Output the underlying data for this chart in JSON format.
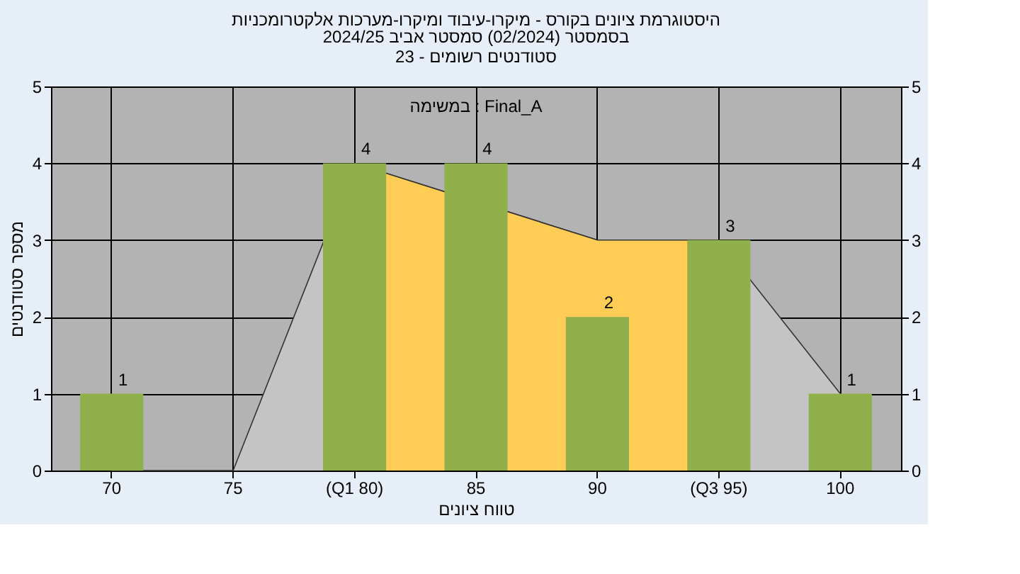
{
  "chart_data": {
    "type": "bar",
    "title": "היסטוגרמת ציונים בקורס - מיקרו-עיבוד ומיקרו-מערכות אלקטרומכניות",
    "subtitle": "בסמסטר  (02/2024)  סמסטר אביב 2024/25\nסטודנטים רשומים - 23",
    "xlabel": "טווח ציונים",
    "ylabel": "מספר סטודנטים",
    "annotations": [
      "במשימה : Final_A"
    ],
    "categories": [
      "70",
      "75",
      "(Q1 80)",
      "85",
      "90",
      "(Q3 95)",
      "100"
    ],
    "series": [
      {
        "type": "area",
        "color": "#c4c4c4",
        "values": [
          0,
          0,
          4,
          null,
          3,
          3,
          1
        ]
      },
      {
        "type": "area",
        "color": "#ffcc55",
        "values": [
          null,
          null,
          4,
          null,
          3,
          3,
          null
        ]
      },
      {
        "color": "#8fb04a",
        "values": [
          1,
          0,
          4,
          4,
          2,
          3,
          1
        ],
        "value_labels": [
          "1",
          null,
          "4",
          "4",
          "2",
          "3",
          "1"
        ]
      }
    ],
    "ylim": [
      0,
      5
    ],
    "yticks": [
      0,
      1,
      2,
      3,
      4,
      5
    ],
    "y2lim": [
      0,
      5
    ],
    "y2ticks": [
      0,
      1,
      2,
      3,
      4,
      5
    ],
    "grid": true
  }
}
